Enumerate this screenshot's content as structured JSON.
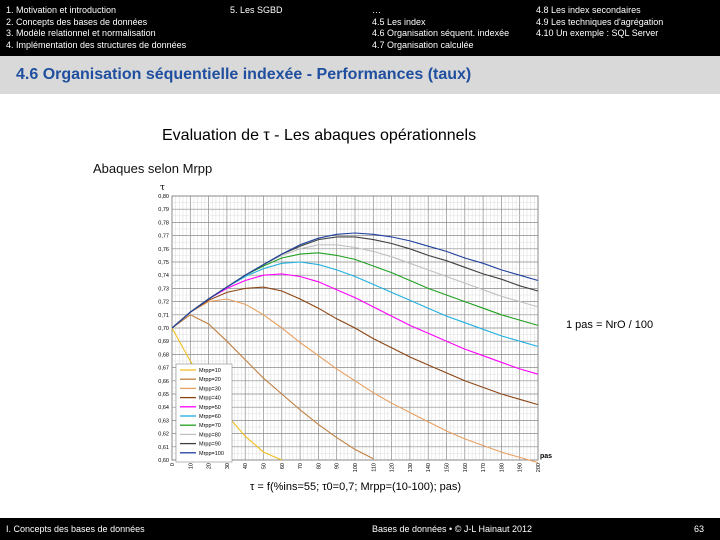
{
  "nav": {
    "col1": [
      "1. Motivation et introduction",
      "2. Concepts des bases de données",
      "3. Modèle relationnel et normalisation",
      "4. Implémentation des structures de données"
    ],
    "col2": [
      "5. Les SGBD"
    ],
    "col3": [
      "…",
      "4.5 Les index",
      "4.6 Organisation séquent. indexée",
      "4.7 Organisation calculée"
    ],
    "col4": [
      "4.8 Les index secondaires",
      "4.9 Les techniques d'agrégation",
      "4.10 Un exemple : SQL Server"
    ]
  },
  "title": "4.6 Organisation séquentielle indexée - Performances (taux)",
  "subtitle": "Evaluation de τ  - Les abaques opérationnels",
  "abaques_label": "Abaques selon Mrpp",
  "pas_note": "1 pas = NrO / 100",
  "formula": "τ = f(%ins=55; τ0=0,7; Mrpp=(10-100); pas)",
  "footer": {
    "left": "I. Concepts des bases de données",
    "center": "Bases de données • © J-L Hainaut 2012",
    "page": "63"
  },
  "chart_data": {
    "type": "line",
    "ylabel": "τ",
    "xlabel": "pas",
    "xlim": [
      0,
      200
    ],
    "ylim": [
      0.6,
      0.8
    ],
    "x_ticks": [
      0,
      10,
      20,
      30,
      40,
      50,
      60,
      70,
      80,
      90,
      100,
      110,
      120,
      130,
      140,
      150,
      160,
      170,
      180,
      190,
      200
    ],
    "y_ticks": [
      "0,60",
      "0,61",
      "0,62",
      "0,63",
      "0,64",
      "0,65",
      "0,66",
      "0,67",
      "0,68",
      "0,69",
      "0,70",
      "0,71",
      "0,72",
      "0,73",
      "0,74",
      "0,75",
      "0,76",
      "0,77",
      "0,78",
      "0,79",
      "0,80"
    ],
    "grid": true,
    "legend_position": "bottom-left",
    "series": [
      {
        "name": "Mrpp=10",
        "color": "#f0c020",
        "points": [
          [
            0,
            0.7
          ],
          [
            10,
            0.675
          ],
          [
            20,
            0.653
          ],
          [
            30,
            0.634
          ],
          [
            40,
            0.618
          ],
          [
            50,
            0.606
          ],
          [
            60,
            0.6
          ]
        ]
      },
      {
        "name": "Mrpp=20",
        "color": "#c08040",
        "points": [
          [
            0,
            0.7
          ],
          [
            10,
            0.71
          ],
          [
            20,
            0.703
          ],
          [
            30,
            0.69
          ],
          [
            40,
            0.676
          ],
          [
            50,
            0.662
          ],
          [
            60,
            0.65
          ],
          [
            70,
            0.638
          ],
          [
            80,
            0.627
          ],
          [
            90,
            0.617
          ],
          [
            100,
            0.608
          ],
          [
            110,
            0.601
          ]
        ]
      },
      {
        "name": "Mrpp=30",
        "color": "#e8a060",
        "points": [
          [
            0,
            0.7
          ],
          [
            10,
            0.712
          ],
          [
            20,
            0.72
          ],
          [
            30,
            0.722
          ],
          [
            40,
            0.718
          ],
          [
            50,
            0.71
          ],
          [
            60,
            0.7
          ],
          [
            70,
            0.689
          ],
          [
            80,
            0.679
          ],
          [
            90,
            0.669
          ],
          [
            100,
            0.66
          ],
          [
            110,
            0.651
          ],
          [
            120,
            0.643
          ],
          [
            130,
            0.636
          ],
          [
            140,
            0.629
          ],
          [
            150,
            0.622
          ],
          [
            160,
            0.616
          ],
          [
            170,
            0.611
          ],
          [
            180,
            0.606
          ],
          [
            190,
            0.602
          ],
          [
            200,
            0.598
          ]
        ]
      },
      {
        "name": "Mrpp=40",
        "color": "#8b4513",
        "points": [
          [
            0,
            0.7
          ],
          [
            10,
            0.712
          ],
          [
            20,
            0.721
          ],
          [
            30,
            0.727
          ],
          [
            40,
            0.73
          ],
          [
            50,
            0.731
          ],
          [
            60,
            0.728
          ],
          [
            70,
            0.722
          ],
          [
            80,
            0.715
          ],
          [
            90,
            0.707
          ],
          [
            100,
            0.7
          ],
          [
            110,
            0.692
          ],
          [
            120,
            0.685
          ],
          [
            130,
            0.678
          ],
          [
            140,
            0.672
          ],
          [
            150,
            0.666
          ],
          [
            160,
            0.66
          ],
          [
            170,
            0.655
          ],
          [
            180,
            0.65
          ],
          [
            190,
            0.646
          ],
          [
            200,
            0.642
          ]
        ]
      },
      {
        "name": "Mrpp=50",
        "color": "#ff00ff",
        "points": [
          [
            0,
            0.7
          ],
          [
            10,
            0.712
          ],
          [
            20,
            0.722
          ],
          [
            30,
            0.73
          ],
          [
            40,
            0.736
          ],
          [
            50,
            0.74
          ],
          [
            60,
            0.741
          ],
          [
            70,
            0.739
          ],
          [
            80,
            0.735
          ],
          [
            90,
            0.729
          ],
          [
            100,
            0.723
          ],
          [
            110,
            0.716
          ],
          [
            120,
            0.709
          ],
          [
            130,
            0.702
          ],
          [
            140,
            0.696
          ],
          [
            150,
            0.69
          ],
          [
            160,
            0.684
          ],
          [
            170,
            0.679
          ],
          [
            180,
            0.674
          ],
          [
            190,
            0.669
          ],
          [
            200,
            0.665
          ]
        ]
      },
      {
        "name": "Mrpp=60",
        "color": "#20b0e0",
        "points": [
          [
            0,
            0.7
          ],
          [
            10,
            0.712
          ],
          [
            20,
            0.722
          ],
          [
            30,
            0.731
          ],
          [
            40,
            0.739
          ],
          [
            50,
            0.745
          ],
          [
            60,
            0.749
          ],
          [
            70,
            0.75
          ],
          [
            80,
            0.748
          ],
          [
            90,
            0.744
          ],
          [
            100,
            0.739
          ],
          [
            110,
            0.733
          ],
          [
            120,
            0.727
          ],
          [
            130,
            0.721
          ],
          [
            140,
            0.715
          ],
          [
            150,
            0.709
          ],
          [
            160,
            0.704
          ],
          [
            170,
            0.699
          ],
          [
            180,
            0.694
          ],
          [
            190,
            0.69
          ],
          [
            200,
            0.686
          ]
        ]
      },
      {
        "name": "Mrpp=70",
        "color": "#20a020",
        "points": [
          [
            0,
            0.7
          ],
          [
            10,
            0.712
          ],
          [
            20,
            0.722
          ],
          [
            30,
            0.731
          ],
          [
            40,
            0.74
          ],
          [
            50,
            0.747
          ],
          [
            60,
            0.753
          ],
          [
            70,
            0.756
          ],
          [
            80,
            0.757
          ],
          [
            90,
            0.755
          ],
          [
            100,
            0.752
          ],
          [
            110,
            0.747
          ],
          [
            120,
            0.742
          ],
          [
            130,
            0.736
          ],
          [
            140,
            0.73
          ],
          [
            150,
            0.725
          ],
          [
            160,
            0.72
          ],
          [
            170,
            0.715
          ],
          [
            180,
            0.71
          ],
          [
            190,
            0.706
          ],
          [
            200,
            0.702
          ]
        ]
      },
      {
        "name": "Mrpp=80",
        "color": "#c0c0c0",
        "points": [
          [
            0,
            0.7
          ],
          [
            10,
            0.712
          ],
          [
            20,
            0.722
          ],
          [
            30,
            0.731
          ],
          [
            40,
            0.74
          ],
          [
            50,
            0.748
          ],
          [
            60,
            0.755
          ],
          [
            70,
            0.76
          ],
          [
            80,
            0.763
          ],
          [
            90,
            0.763
          ],
          [
            100,
            0.761
          ],
          [
            110,
            0.758
          ],
          [
            120,
            0.754
          ],
          [
            130,
            0.749
          ],
          [
            140,
            0.744
          ],
          [
            150,
            0.739
          ],
          [
            160,
            0.734
          ],
          [
            170,
            0.729
          ],
          [
            180,
            0.724
          ],
          [
            190,
            0.72
          ],
          [
            200,
            0.716
          ]
        ]
      },
      {
        "name": "Mrpp=90",
        "color": "#404040",
        "points": [
          [
            0,
            0.7
          ],
          [
            10,
            0.712
          ],
          [
            20,
            0.722
          ],
          [
            30,
            0.731
          ],
          [
            40,
            0.74
          ],
          [
            50,
            0.748
          ],
          [
            60,
            0.756
          ],
          [
            70,
            0.762
          ],
          [
            80,
            0.767
          ],
          [
            90,
            0.769
          ],
          [
            100,
            0.769
          ],
          [
            110,
            0.767
          ],
          [
            120,
            0.764
          ],
          [
            130,
            0.76
          ],
          [
            140,
            0.755
          ],
          [
            150,
            0.751
          ],
          [
            160,
            0.746
          ],
          [
            170,
            0.741
          ],
          [
            180,
            0.737
          ],
          [
            190,
            0.732
          ],
          [
            200,
            0.728
          ]
        ]
      },
      {
        "name": "Mrpp=100",
        "color": "#1e3f9e",
        "points": [
          [
            0,
            0.7
          ],
          [
            10,
            0.712
          ],
          [
            20,
            0.722
          ],
          [
            30,
            0.731
          ],
          [
            40,
            0.74
          ],
          [
            50,
            0.748
          ],
          [
            60,
            0.756
          ],
          [
            70,
            0.763
          ],
          [
            80,
            0.768
          ],
          [
            90,
            0.771
          ],
          [
            100,
            0.772
          ],
          [
            110,
            0.771
          ],
          [
            120,
            0.769
          ],
          [
            130,
            0.766
          ],
          [
            140,
            0.762
          ],
          [
            150,
            0.758
          ],
          [
            160,
            0.753
          ],
          [
            170,
            0.749
          ],
          [
            180,
            0.744
          ],
          [
            190,
            0.74
          ],
          [
            200,
            0.736
          ]
        ]
      }
    ]
  }
}
